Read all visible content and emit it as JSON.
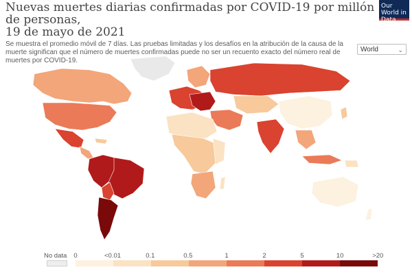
{
  "header": {
    "title": "Nuevas muertes diarias confirmadas por COVID-19 por millón de personas,",
    "date_line": "19 de mayo de 2021",
    "subtitle": "Se muestra el promedio móvil de 7 días. Las pruebas limitadas y los desafíos en la atribución de la causa de la muerte significan que el número de muertes confirmadas puede no ser un recuento exacto del número real de muertes por COVID-19."
  },
  "logo": {
    "text": "Our World in Data"
  },
  "region_selector": {
    "value": "World"
  },
  "legend": {
    "nodata_label": "No data",
    "tick_labels": [
      "0",
      "<0.01",
      "0.1",
      "0.5",
      "1",
      "2",
      "5",
      "10",
      ">20"
    ],
    "colors": [
      "#fdf1df",
      "#fbe2c2",
      "#f7c99b",
      "#f2a67a",
      "#eb7a58",
      "#d9432f",
      "#b11a1a",
      "#7a0a0a"
    ],
    "nodata_color": "#eeeeee"
  },
  "map_colors": {
    "very_low": "#fdf1df",
    "low": "#fbe2c2",
    "low_mid": "#f7c99b",
    "mid": "#f2a67a",
    "mid_high": "#eb7a58",
    "high": "#d9432f",
    "very_high": "#b11a1a",
    "max": "#7a0a0a",
    "nodata": "#e9e9e9"
  }
}
